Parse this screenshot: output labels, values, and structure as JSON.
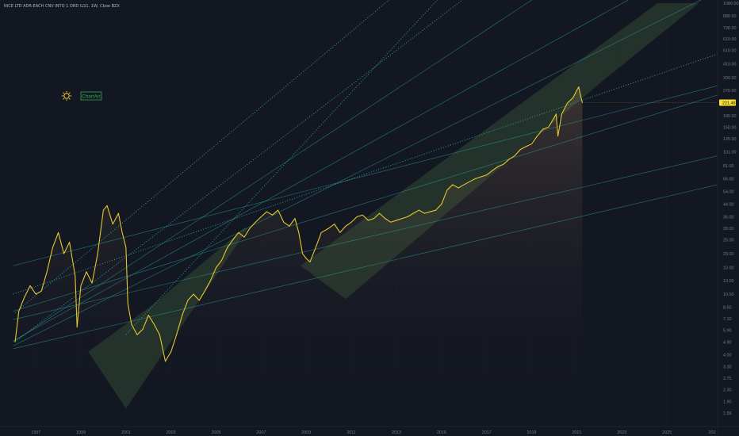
{
  "header": {
    "title": "NICE LTD ADR-EACH CNV INTO 1 ORD ILS1, 1W, Cboe BZX"
  },
  "watermark": {
    "label": "ChartArt",
    "icon": "sun-icon"
  },
  "colors": {
    "background": "#131722",
    "price_line": "#e6c72d",
    "trend_line": "#2bb3a6",
    "channel_fill": "#3a5a3a",
    "axis_text": "#787b86",
    "badge_bg": "#f7e02e",
    "grid": "#1e2230"
  },
  "chart_data": {
    "type": "line",
    "title": "",
    "xlabel": "",
    "ylabel": "",
    "y_scale": "log",
    "ylim": [
      1.58,
      1080
    ],
    "xlim": [
      "1995-06-01",
      "2027-04-01"
    ],
    "last_price_label": "221.48",
    "x_tick_labels": [
      "1997",
      "1999",
      "2001",
      "2003",
      "2005",
      "2007",
      "2009",
      "2011",
      "2013",
      "2015",
      "2017",
      "2019",
      "2021",
      "2023",
      "2025",
      "202"
    ],
    "y_tick_labels": [
      "1080.00",
      "880.00",
      "730.00",
      "610.00",
      "510.00",
      "410.00",
      "330.00",
      "270.00",
      "221.48",
      "180.00",
      "150.00",
      "125.00",
      "101.00",
      "81.00",
      "66.00",
      "54.00",
      "44.00",
      "36.00",
      "30.00",
      "25.00",
      "20.00",
      "16.00",
      "13.00",
      "10.50",
      "8.50",
      "7.10",
      "5.90",
      "4.90",
      "4.00",
      "3.30",
      "2.75",
      "2.30",
      "1.90",
      "1.58"
    ],
    "series": [
      {
        "values": [
          [
            "1996-02",
            4.9
          ],
          [
            "1996-04",
            8.0
          ],
          [
            "1996-07",
            10.0
          ],
          [
            "1996-10",
            12.0
          ],
          [
            "1997-01",
            10.5
          ],
          [
            "1997-04",
            11.0
          ],
          [
            "1997-07",
            15.0
          ],
          [
            "1997-10",
            22.0
          ],
          [
            "1998-01",
            28.0
          ],
          [
            "1998-04",
            20.0
          ],
          [
            "1998-07",
            24.0
          ],
          [
            "1998-10",
            14.0
          ],
          [
            "1998-11",
            6.2
          ],
          [
            "1999-01",
            12.0
          ],
          [
            "1999-04",
            15.0
          ],
          [
            "1999-07",
            12.5
          ],
          [
            "1999-10",
            20.0
          ],
          [
            "2000-01",
            40.0
          ],
          [
            "2000-03",
            43.0
          ],
          [
            "2000-06",
            32.0
          ],
          [
            "2000-09",
            38.0
          ],
          [
            "2000-11",
            28.0
          ],
          [
            "2001-01",
            22.0
          ],
          [
            "2001-02",
            9.0
          ],
          [
            "2001-04",
            6.5
          ],
          [
            "2001-07",
            5.5
          ],
          [
            "2001-10",
            6.0
          ],
          [
            "2002-01",
            7.5
          ],
          [
            "2002-04",
            6.5
          ],
          [
            "2002-07",
            5.5
          ],
          [
            "2002-10",
            3.6
          ],
          [
            "2003-01",
            4.2
          ],
          [
            "2003-04",
            5.5
          ],
          [
            "2003-07",
            7.5
          ],
          [
            "2003-10",
            9.5
          ],
          [
            "2004-01",
            10.5
          ],
          [
            "2004-04",
            9.5
          ],
          [
            "2004-07",
            11.0
          ],
          [
            "2004-10",
            13.0
          ],
          [
            "2005-01",
            16.0
          ],
          [
            "2005-04",
            18.0
          ],
          [
            "2005-07",
            22.0
          ],
          [
            "2005-10",
            25.0
          ],
          [
            "2006-01",
            28.0
          ],
          [
            "2006-04",
            26.0
          ],
          [
            "2006-07",
            30.0
          ],
          [
            "2006-10",
            33.0
          ],
          [
            "2007-01",
            36.0
          ],
          [
            "2007-04",
            39.0
          ],
          [
            "2007-07",
            37.0
          ],
          [
            "2007-10",
            40.0
          ],
          [
            "2008-01",
            33.0
          ],
          [
            "2008-04",
            31.0
          ],
          [
            "2008-07",
            35.0
          ],
          [
            "2008-09",
            28.0
          ],
          [
            "2008-11",
            20.0
          ],
          [
            "2009-01",
            18.5
          ],
          [
            "2009-03",
            17.5
          ],
          [
            "2009-06",
            22.0
          ],
          [
            "2009-09",
            28.0
          ],
          [
            "2010-01",
            30.0
          ],
          [
            "2010-04",
            32.0
          ],
          [
            "2010-07",
            28.0
          ],
          [
            "2010-10",
            31.0
          ],
          [
            "2011-01",
            33.0
          ],
          [
            "2011-04",
            36.0
          ],
          [
            "2011-07",
            37.0
          ],
          [
            "2011-10",
            34.0
          ],
          [
            "2012-01",
            35.0
          ],
          [
            "2012-04",
            38.0
          ],
          [
            "2012-07",
            35.0
          ],
          [
            "2012-10",
            33.0
          ],
          [
            "2013-01",
            34.0
          ],
          [
            "2013-04",
            35.0
          ],
          [
            "2013-07",
            36.0
          ],
          [
            "2013-10",
            38.0
          ],
          [
            "2014-01",
            40.0
          ],
          [
            "2014-04",
            38.0
          ],
          [
            "2014-07",
            39.0
          ],
          [
            "2014-10",
            40.0
          ],
          [
            "2015-01",
            44.0
          ],
          [
            "2015-04",
            55.0
          ],
          [
            "2015-07",
            60.0
          ],
          [
            "2015-10",
            57.0
          ],
          [
            "2016-01",
            60.0
          ],
          [
            "2016-04",
            63.0
          ],
          [
            "2016-07",
            66.0
          ],
          [
            "2016-10",
            68.0
          ],
          [
            "2017-01",
            70.0
          ],
          [
            "2017-04",
            75.0
          ],
          [
            "2017-07",
            80.0
          ],
          [
            "2017-10",
            83.0
          ],
          [
            "2018-01",
            90.0
          ],
          [
            "2018-04",
            95.0
          ],
          [
            "2018-07",
            105.0
          ],
          [
            "2018-10",
            110.0
          ],
          [
            "2019-01",
            115.0
          ],
          [
            "2019-04",
            130.0
          ],
          [
            "2019-07",
            145.0
          ],
          [
            "2019-10",
            150.0
          ],
          [
            "2020-01",
            175.0
          ],
          [
            "2020-02",
            185.0
          ],
          [
            "2020-03",
            130.0
          ],
          [
            "2020-05",
            185.0
          ],
          [
            "2020-08",
            220.0
          ],
          [
            "2020-11",
            240.0
          ],
          [
            "2021-01",
            270.0
          ],
          [
            "2021-02",
            285.0
          ],
          [
            "2021-03",
            250.0
          ],
          [
            "2021-04",
            221.48
          ]
        ]
      }
    ],
    "trend_lines": [
      {
        "style": "dotted",
        "from": [
          "1996-01",
          10.5
        ],
        "to": [
          "2027-04",
          480.0
        ]
      },
      {
        "style": "solid",
        "from": [
          "1996-01",
          16.5
        ],
        "to": [
          "2027-04",
          290.0
        ]
      },
      {
        "style": "solid",
        "from": [
          "1996-01",
          8.0
        ],
        "to": [
          "2027-04",
          250.0
        ]
      },
      {
        "style": "solid",
        "from": [
          "1996-01",
          7.0
        ],
        "to": [
          "2027-04",
          95.0
        ]
      },
      {
        "style": "solid",
        "from": [
          "1996-01",
          4.4
        ],
        "to": [
          "2027-04",
          60.0
        ]
      },
      {
        "style": "solid",
        "from": [
          "1996-01",
          4.9
        ],
        "to": [
          "2027-04",
          8000.0
        ]
      },
      {
        "style": "solid",
        "from": [
          "1996-01",
          5.0
        ],
        "to": [
          "2027-04",
          2500.0
        ]
      },
      {
        "style": "solid",
        "from": [
          "1996-01",
          4.6
        ],
        "to": [
          "2027-04",
          1300.0
        ]
      },
      {
        "style": "dotted",
        "from": [
          "1996-02",
          4.9
        ],
        "to": [
          "2016-06",
          1300.0
        ]
      },
      {
        "style": "dotted",
        "from": [
          "1996-02",
          7.8
        ],
        "to": [
          "2016-06",
          3500.0
        ]
      },
      {
        "style": "dotted",
        "from": [
          "2001-01",
          5.5
        ],
        "to": [
          "2015-03",
          1300.0
        ]
      }
    ],
    "channels": [
      {
        "points": [
          [
            "1999-05",
            4.2
          ],
          [
            "2001-01",
            1.7
          ],
          [
            "2006-06",
            30.0
          ],
          [
            "2006-04",
            30.0
          ],
          [
            "2002-04",
            9.0
          ]
        ]
      },
      {
        "points": [
          [
            "2008-10",
            16.5
          ],
          [
            "2010-10",
            9.7
          ],
          [
            "2022-01",
            300.0
          ],
          [
            "2026-06",
            1080.0
          ],
          [
            "2024-08",
            1080.0
          ]
        ]
      }
    ]
  }
}
